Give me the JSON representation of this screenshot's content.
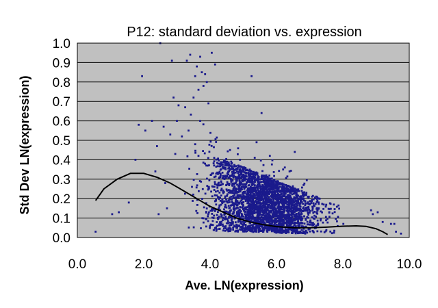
{
  "chart_data": {
    "type": "scatter",
    "title": "P12: standard deviation vs. expression",
    "xlabel": "Ave. LN(expression)",
    "ylabel": "Std Dev LN(expression)",
    "xlim": [
      0.0,
      10.0
    ],
    "ylim": [
      0.0,
      1.0
    ],
    "x_ticks": [
      "0.0",
      "2.0",
      "4.0",
      "6.0",
      "8.0",
      "10.0"
    ],
    "y_ticks": [
      "0.0",
      "0.1",
      "0.2",
      "0.3",
      "0.4",
      "0.5",
      "0.6",
      "0.7",
      "0.8",
      "0.9",
      "1.0"
    ],
    "grid": "horizontal",
    "legend": "none",
    "colors": {
      "points": "#1a1a8c",
      "trend": "#000000",
      "plot_background": "#c0c0c0",
      "grid": "#000000"
    },
    "series": [
      {
        "kind": "scatter",
        "points": [
          [
            2.5,
            1.0
          ],
          [
            3.4,
            0.94
          ],
          [
            4.05,
            0.95
          ],
          [
            3.7,
            0.93
          ],
          [
            3.3,
            0.91
          ],
          [
            4.15,
            0.89
          ],
          [
            2.85,
            0.91
          ],
          [
            3.6,
            0.88
          ],
          [
            3.75,
            0.85
          ],
          [
            3.85,
            0.84
          ],
          [
            3.55,
            0.83
          ],
          [
            5.25,
            0.83
          ],
          [
            1.95,
            0.83
          ],
          [
            3.9,
            0.8
          ],
          [
            3.8,
            0.78
          ],
          [
            3.65,
            0.76
          ],
          [
            2.9,
            0.72
          ],
          [
            3.5,
            0.72
          ],
          [
            3.95,
            0.69
          ],
          [
            3.05,
            0.68
          ],
          [
            3.25,
            0.67
          ],
          [
            5.55,
            0.64
          ],
          [
            2.25,
            0.6
          ],
          [
            3.0,
            0.6
          ],
          [
            3.7,
            0.6
          ],
          [
            1.85,
            0.58
          ],
          [
            2.6,
            0.57
          ],
          [
            3.35,
            0.55
          ],
          [
            2.05,
            0.55
          ],
          [
            2.8,
            0.53
          ],
          [
            3.15,
            0.52
          ],
          [
            5.4,
            0.49
          ],
          [
            3.55,
            0.48
          ],
          [
            2.4,
            0.47
          ],
          [
            4.6,
            0.45
          ],
          [
            6.55,
            0.44
          ],
          [
            2.95,
            0.43
          ],
          [
            3.65,
            0.42
          ],
          [
            5.8,
            0.42
          ],
          [
            1.75,
            0.4
          ],
          [
            4.9,
            0.4
          ],
          [
            4.3,
            0.38
          ],
          [
            6.2,
            0.35
          ],
          [
            2.35,
            0.34
          ],
          [
            5.1,
            0.33
          ],
          [
            1.05,
            0.12
          ],
          [
            1.25,
            0.13
          ],
          [
            0.55,
            0.03
          ],
          [
            1.55,
            0.18
          ],
          [
            2.45,
            0.12
          ],
          [
            8.85,
            0.14
          ],
          [
            9.05,
            0.13
          ],
          [
            9.2,
            0.08
          ],
          [
            9.45,
            0.07
          ],
          [
            9.6,
            0.03
          ],
          [
            9.75,
            0.02
          ],
          [
            9.55,
            0.07
          ],
          [
            8.9,
            0.12
          ],
          [
            2.65,
            0.28
          ],
          [
            2.7,
            0.15
          ]
        ],
        "cloud": {
          "approx_count": 3000,
          "x_range": [
            2.6,
            9.6
          ],
          "note_mean": "std dev decreases from about 0.25 at x=3 to about 0.05 at x=9"
        }
      },
      {
        "kind": "trend",
        "points": [
          [
            0.55,
            0.19
          ],
          [
            0.8,
            0.25
          ],
          [
            1.2,
            0.3
          ],
          [
            1.6,
            0.33
          ],
          [
            2.0,
            0.33
          ],
          [
            2.4,
            0.31
          ],
          [
            2.8,
            0.28
          ],
          [
            3.2,
            0.24
          ],
          [
            3.6,
            0.2
          ],
          [
            4.0,
            0.16
          ],
          [
            4.4,
            0.13
          ],
          [
            4.8,
            0.1
          ],
          [
            5.2,
            0.08
          ],
          [
            5.6,
            0.066
          ],
          [
            6.0,
            0.056
          ],
          [
            6.5,
            0.05
          ],
          [
            7.0,
            0.05
          ],
          [
            7.5,
            0.053
          ],
          [
            8.0,
            0.058
          ],
          [
            8.4,
            0.06
          ],
          [
            8.7,
            0.057
          ],
          [
            9.0,
            0.045
          ],
          [
            9.2,
            0.03
          ],
          [
            9.35,
            0.015
          ]
        ]
      }
    ]
  }
}
